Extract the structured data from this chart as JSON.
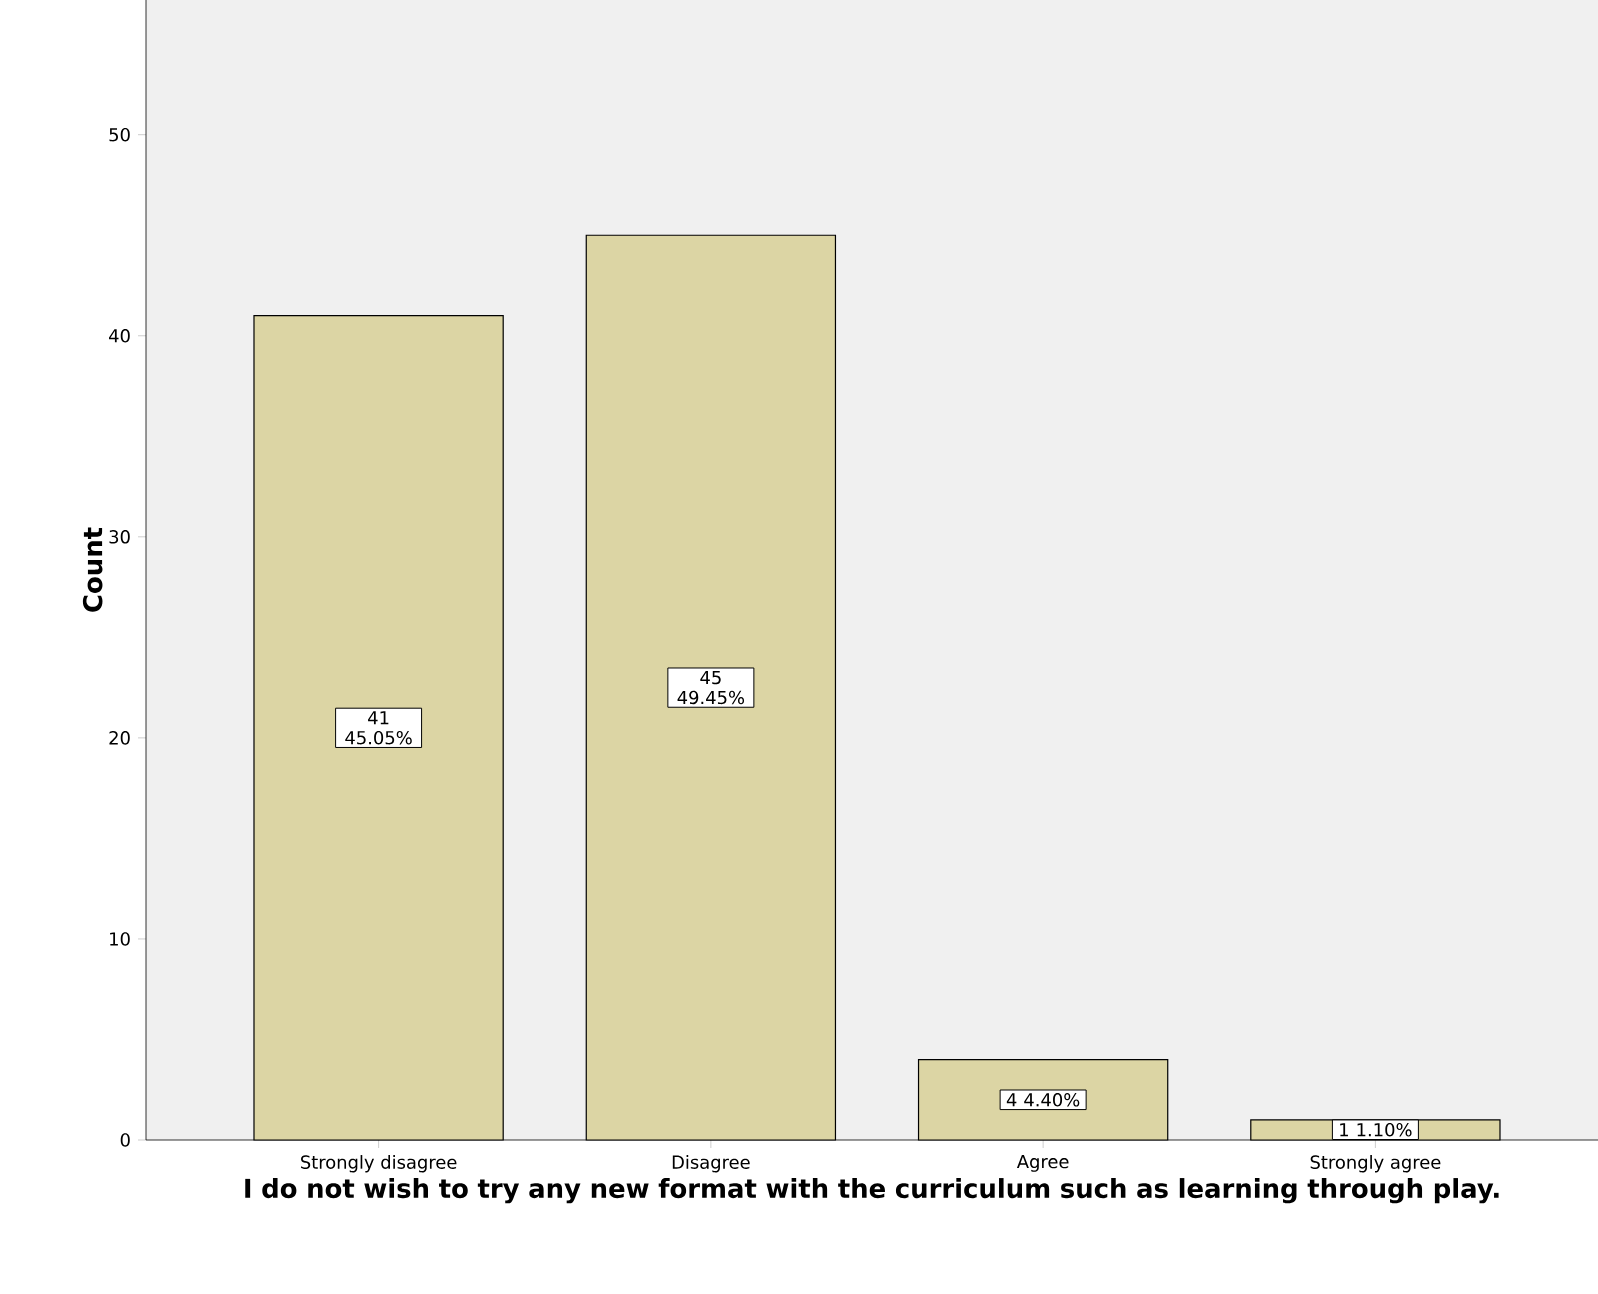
{
  "chart_data": {
    "type": "bar",
    "xlabel": "I do not wish to try any new format with the curriculum such as learning through play.",
    "ylabel": "Count",
    "categories": [
      "Strongly disagree",
      "Disagree",
      "Agree",
      "Strongly agree"
    ],
    "values": [
      41,
      45,
      4,
      1
    ],
    "value_labels": [
      "41 45.05%",
      "45 49.45%",
      "4 4.40%",
      "1 1.10%"
    ],
    "color": "#dcd5a4",
    "ylim": [
      0,
      56.7
    ],
    "yticks": [
      0,
      10,
      20,
      30,
      40,
      50
    ],
    "grid": false
  }
}
